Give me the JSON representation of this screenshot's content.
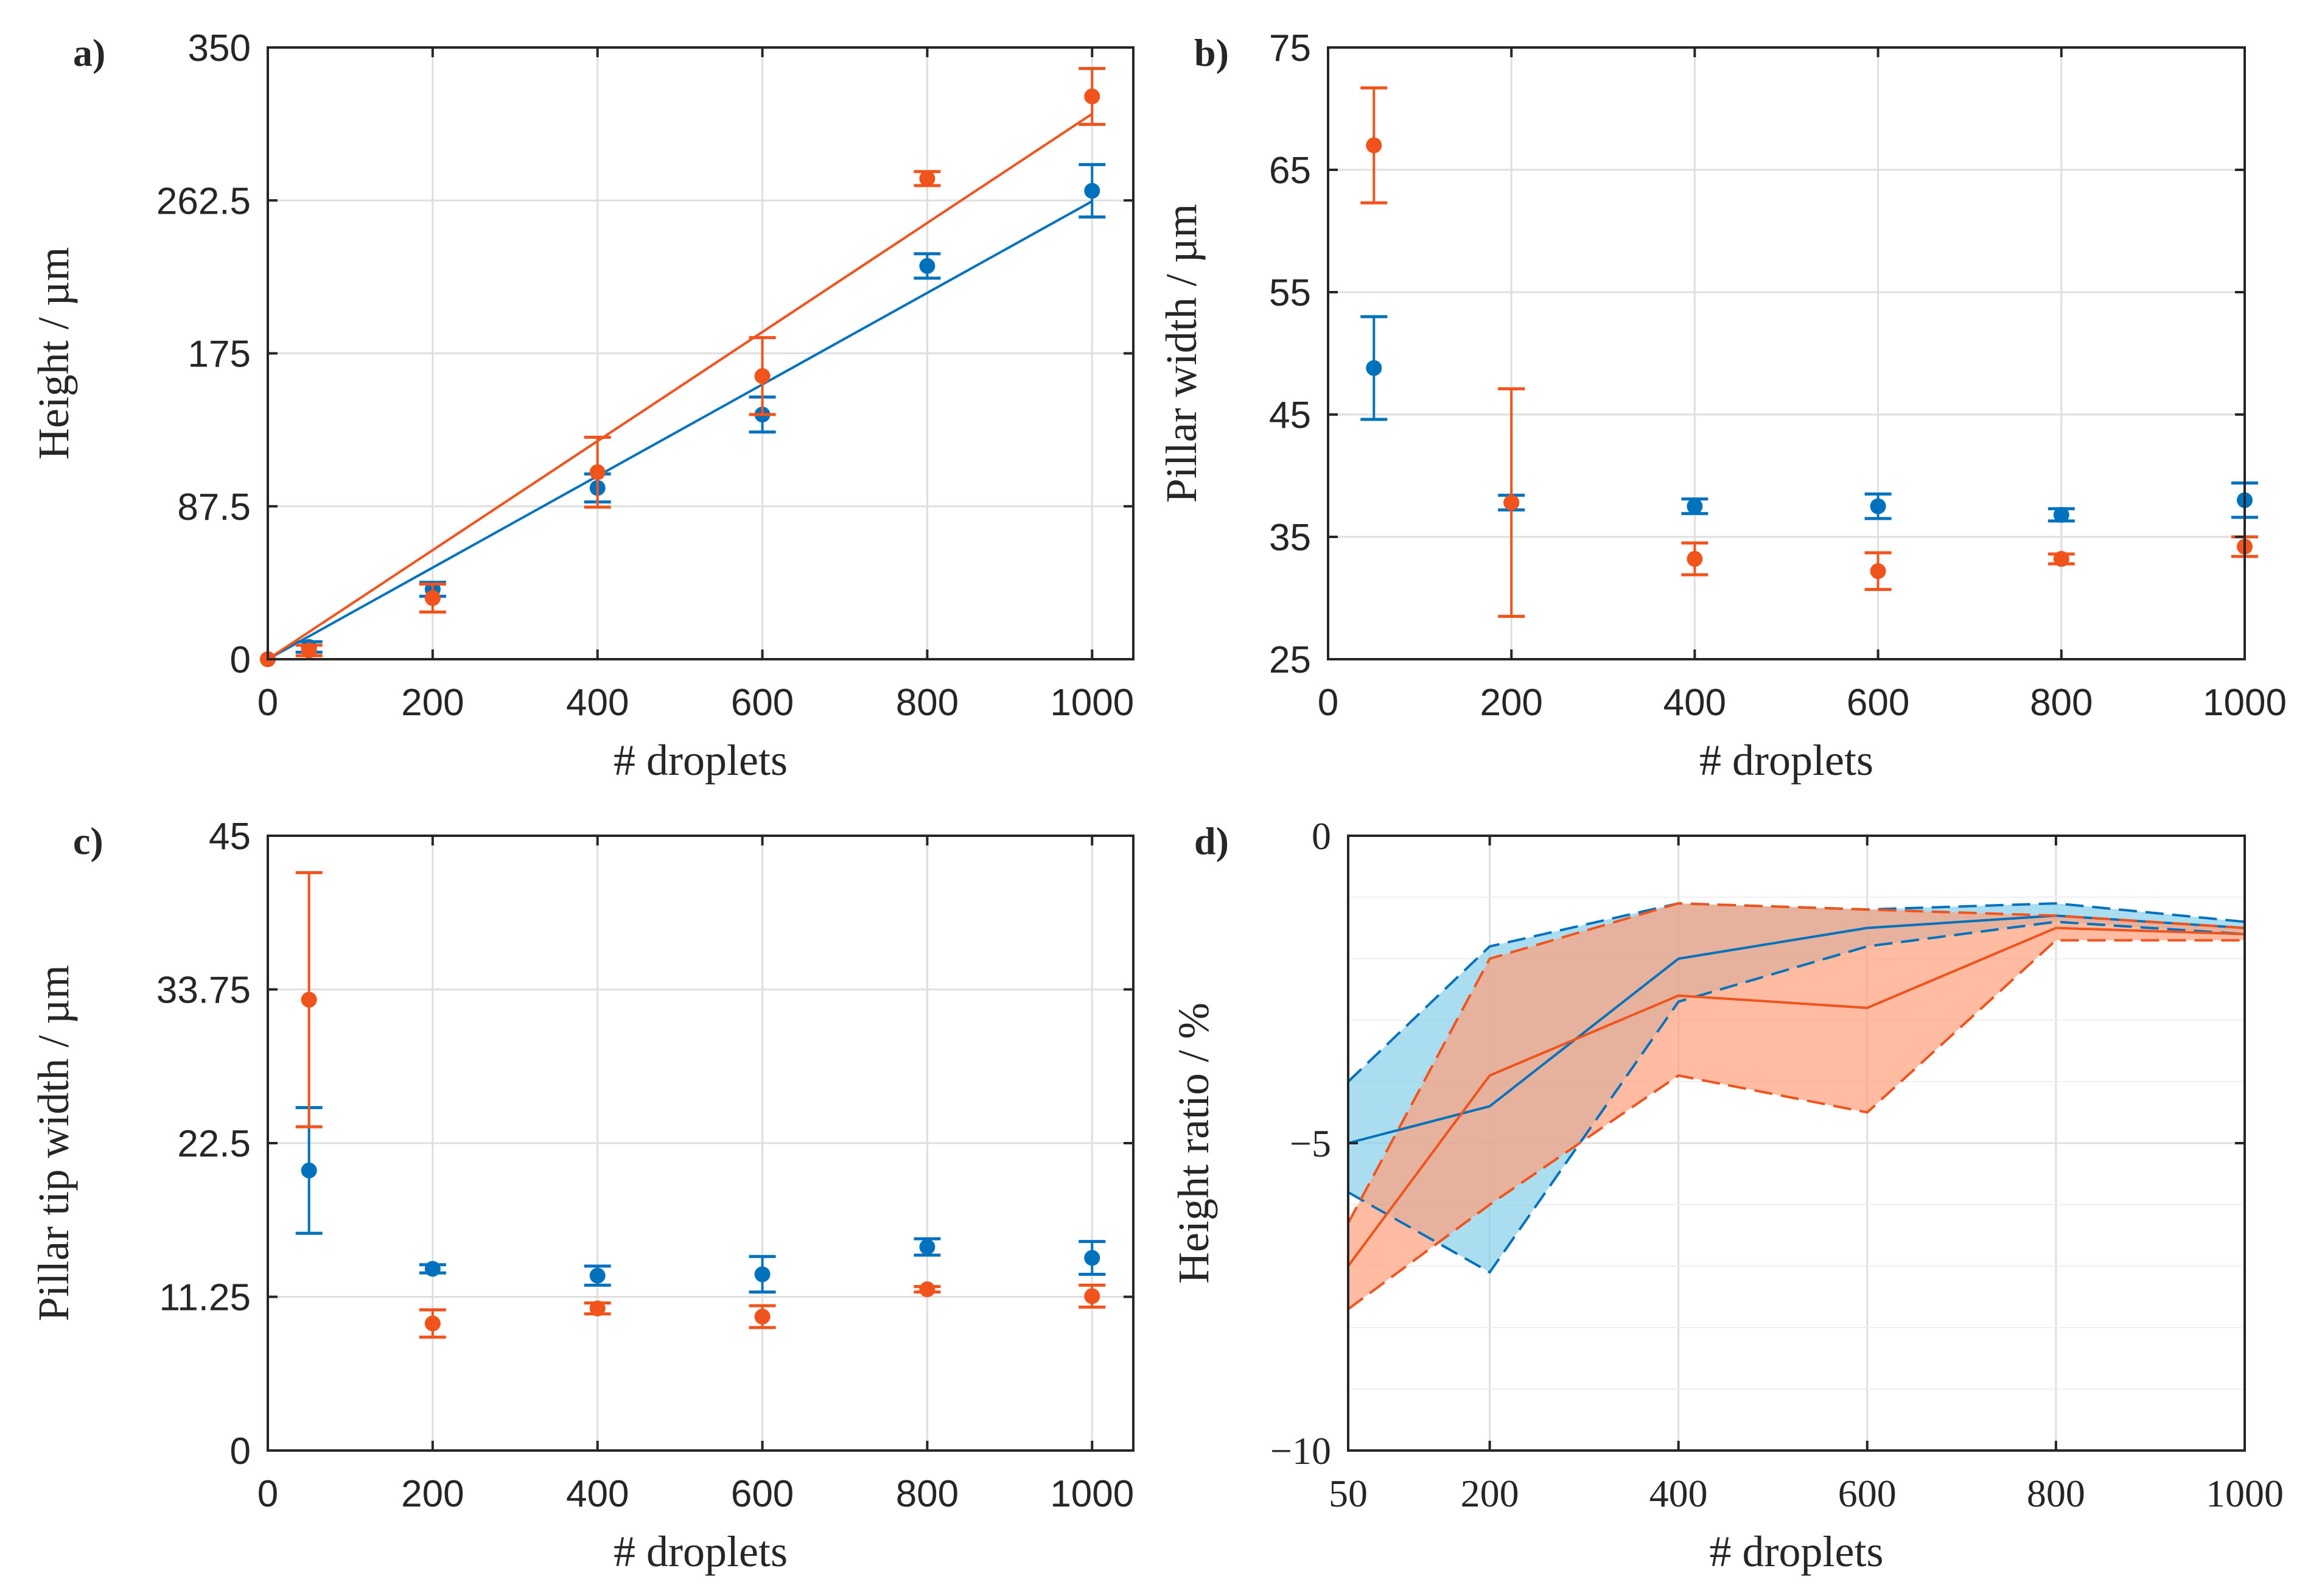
{
  "colors": {
    "blue": "#0072BD",
    "orange": "#F0531C",
    "blue_fill": "#87CEEB",
    "orange_fill": "#FFA07A"
  },
  "chart_data": [
    {
      "panel_label": "a)",
      "type": "scatter",
      "ylabel": "Height / µm",
      "xlabel": "# droplets",
      "xlim": [
        0,
        1050
      ],
      "ylim": [
        0,
        350
      ],
      "xticks": [
        0,
        200,
        400,
        600,
        800,
        1000
      ],
      "yticks": [
        0,
        87.5,
        175,
        262.5,
        350
      ],
      "xtick_labels": [
        "0",
        "200",
        "400",
        "600",
        "800",
        "1000"
      ],
      "ytick_labels": [
        "0",
        "87.5",
        "175",
        "262.5",
        "350"
      ],
      "grid": true,
      "series": [
        {
          "name": "blue",
          "color": "#0072BD",
          "x": [
            0,
            50,
            200,
            400,
            600,
            800,
            1000
          ],
          "y": [
            0,
            7,
            40,
            98,
            140,
            225,
            268
          ],
          "err": [
            0,
            3,
            4,
            8,
            10,
            7,
            15
          ],
          "fit": [
            [
              0,
              0
            ],
            [
              1000,
              262
            ]
          ]
        },
        {
          "name": "orange",
          "color": "#F0531C",
          "x": [
            0,
            50,
            200,
            400,
            600,
            800,
            1000
          ],
          "y": [
            0,
            5,
            35,
            107,
            162,
            275,
            322
          ],
          "err": [
            0,
            3,
            8,
            20,
            22,
            4,
            16
          ],
          "fit": [
            [
              0,
              0
            ],
            [
              1000,
              312
            ]
          ]
        }
      ]
    },
    {
      "panel_label": "b)",
      "type": "scatter",
      "ylabel": "Pillar width / µm",
      "xlabel": "# droplets",
      "xlim": [
        0,
        1000
      ],
      "ylim": [
        25,
        75
      ],
      "xticks": [
        0,
        200,
        400,
        600,
        800,
        1000
      ],
      "yticks": [
        25,
        35,
        45,
        55,
        65,
        75
      ],
      "xtick_labels": [
        "0",
        "200",
        "400",
        "600",
        "800",
        "1000"
      ],
      "ytick_labels": [
        "25",
        "35",
        "45",
        "55",
        "65",
        "75"
      ],
      "grid": true,
      "series": [
        {
          "name": "blue",
          "color": "#0072BD",
          "x": [
            50,
            200,
            400,
            600,
            800,
            1000
          ],
          "y": [
            48.8,
            37.8,
            37.5,
            37.5,
            36.8,
            38
          ],
          "err": [
            4.2,
            0.6,
            0.6,
            1,
            0.5,
            1.4
          ]
        },
        {
          "name": "orange",
          "color": "#F0531C",
          "x": [
            50,
            200,
            400,
            600,
            800,
            1000
          ],
          "y": [
            67,
            37.8,
            33.2,
            32.2,
            33.2,
            34.2
          ],
          "err": [
            4.7,
            9.3,
            1.3,
            1.5,
            0.4,
            0.8
          ]
        }
      ]
    },
    {
      "panel_label": "c)",
      "type": "scatter",
      "ylabel": "Pillar tip width / µm",
      "xlabel": "# droplets",
      "xlim": [
        0,
        1050
      ],
      "ylim": [
        0,
        45
      ],
      "xticks": [
        0,
        200,
        400,
        600,
        800,
        1000
      ],
      "yticks": [
        0,
        11.25,
        22.5,
        33.75,
        45
      ],
      "xtick_labels": [
        "0",
        "200",
        "400",
        "600",
        "800",
        "1000"
      ],
      "ytick_labels": [
        "0",
        "11.25",
        "22.5",
        "33.75",
        "45"
      ],
      "grid": true,
      "series": [
        {
          "name": "blue",
          "color": "#0072BD",
          "x": [
            50,
            200,
            400,
            600,
            800,
            1000
          ],
          "y": [
            20.5,
            13.3,
            12.8,
            12.9,
            14.9,
            14.1
          ],
          "err": [
            4.6,
            0.3,
            0.7,
            1.3,
            0.6,
            1.2
          ]
        },
        {
          "name": "orange",
          "color": "#F0531C",
          "x": [
            50,
            200,
            400,
            600,
            800,
            1000
          ],
          "y": [
            33,
            9.3,
            10.4,
            9.8,
            11.8,
            11.3
          ],
          "err": [
            9.3,
            1,
            0.4,
            0.8,
            0.2,
            0.8
          ]
        }
      ]
    },
    {
      "panel_label": "d)",
      "type": "area",
      "ylabel": "Height ratio / %",
      "xlabel": "# droplets",
      "xlim": [
        50,
        1000
      ],
      "ylim": [
        -10,
        0
      ],
      "xticks": [
        50,
        200,
        400,
        600,
        800,
        1000
      ],
      "yticks": [
        -10,
        -5,
        0
      ],
      "xtick_labels": [
        "50",
        "200",
        "400",
        "600",
        "800",
        "1000"
      ],
      "ytick_labels": [
        "−10",
        "−5",
        "0"
      ],
      "grid": true,
      "series": [
        {
          "name": "blue",
          "color": "#0072BD",
          "fill": "#87CEEB",
          "x": [
            50,
            200,
            400,
            600,
            800,
            1000
          ],
          "mean": [
            -5,
            -4.4,
            -2,
            -1.5,
            -1.3,
            -1.5
          ],
          "upper": [
            -4,
            -1.8,
            -1.1,
            -1.2,
            -1.1,
            -1.4
          ],
          "lower": [
            -5.8,
            -7.1,
            -2.7,
            -1.8,
            -1.4,
            -1.6
          ]
        },
        {
          "name": "orange",
          "color": "#F0531C",
          "fill": "#FFA07A",
          "x": [
            50,
            200,
            400,
            600,
            800,
            1000
          ],
          "mean": [
            -7,
            -3.9,
            -2.6,
            -2.8,
            -1.5,
            -1.6
          ],
          "upper": [
            -6.3,
            -2,
            -1.1,
            -1.2,
            -1.3,
            -1.5
          ],
          "lower": [
            -7.7,
            -6,
            -3.9,
            -4.5,
            -1.7,
            -1.7
          ]
        }
      ]
    }
  ]
}
